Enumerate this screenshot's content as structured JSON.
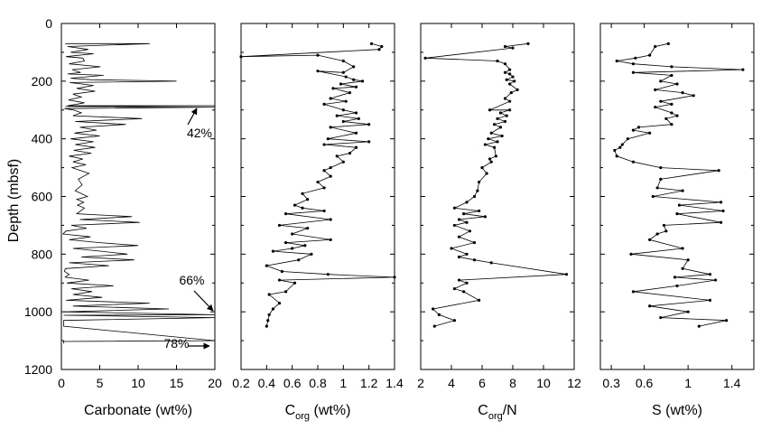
{
  "ylabel": "Depth (mbsf)",
  "yticks": [
    0,
    200,
    400,
    600,
    800,
    1000,
    1200
  ],
  "chart_data": [
    {
      "type": "line",
      "xlabel_main": "Carbonate (wt%)",
      "xlabel_sub": "",
      "xlabel_tail": "",
      "ylabel": "Depth (mbsf)",
      "xlim": [
        0,
        20
      ],
      "ylim": [
        1200,
        0
      ],
      "xticks": [
        0,
        5,
        10,
        15,
        20
      ],
      "markers": false,
      "x": [
        0.5,
        11.5,
        0.8,
        3.5,
        1.2,
        4.2,
        0.6,
        2.8,
        3.0,
        1.0,
        5.1,
        1.4,
        2.5,
        0.8,
        5.5,
        1.2,
        3.8,
        15,
        1.1,
        4.2,
        2.0,
        4.4,
        1.5,
        2.6,
        0.9,
        3.0,
        2.0,
        0.8,
        20,
        0.5,
        20,
        0.4,
        1.6,
        2.6,
        1.5,
        10.5,
        1.8,
        8.4,
        2.4,
        4.6,
        1.7,
        5.0,
        1.2,
        4.2,
        1.8,
        4.4,
        1.6,
        3.9,
        1.0,
        2.8,
        1.5,
        3.2,
        1.4,
        3.6,
        2.2,
        2.7,
        1.8,
        3.4,
        2.0,
        2.9,
        2.1,
        3.0,
        2.0,
        9.2,
        2.4,
        10.2,
        1.3,
        3.3,
        0.6,
        0.2,
        3.8,
        1.0,
        5.0,
        10.0,
        1.5,
        5.2,
        8.6,
        2.6,
        9.5,
        1.0,
        6.2,
        0.5,
        0.4,
        1.0,
        0.5,
        3.6,
        0.7,
        6.8,
        1.3,
        4.0,
        1.5,
        5.3,
        0.6,
        11.5,
        1.5,
        14.0,
        0.4,
        20,
        0.3,
        20,
        0.3,
        0.3,
        20,
        0.3,
        0.3
      ],
      "y": [
        70,
        70,
        80,
        90,
        100,
        105,
        115,
        120,
        130,
        140,
        150,
        160,
        170,
        175,
        180,
        190,
        195,
        200,
        205,
        215,
        225,
        235,
        245,
        255,
        265,
        275,
        280,
        285,
        285,
        288,
        290,
        295,
        300,
        310,
        320,
        330,
        340,
        350,
        360,
        370,
        380,
        390,
        400,
        410,
        420,
        430,
        440,
        450,
        460,
        470,
        480,
        490,
        500,
        520,
        540,
        560,
        580,
        600,
        610,
        620,
        630,
        640,
        660,
        670,
        680,
        690,
        700,
        710,
        720,
        730,
        740,
        750,
        760,
        770,
        780,
        790,
        800,
        810,
        820,
        830,
        840,
        850,
        860,
        870,
        880,
        890,
        900,
        910,
        920,
        930,
        940,
        950,
        960,
        970,
        980,
        990,
        1000,
        1010,
        1012,
        1020,
        1030,
        1050,
        1100,
        1103,
        1110
      ],
      "annotations": [
        {
          "text": "42%",
          "x": 18,
          "y": 395
        },
        {
          "text": "66%",
          "x": 17,
          "y": 905
        },
        {
          "text": "78%",
          "x": 15,
          "y": 1125
        }
      ]
    },
    {
      "type": "line",
      "xlabel_main": "C",
      "xlabel_sub": "org",
      "xlabel_tail": "(wt%)",
      "xlim": [
        0.2,
        1.4
      ],
      "ylim": [
        1200,
        0
      ],
      "xticks": [
        0.2,
        0.4,
        0.6,
        0.8,
        1,
        1.2,
        1.4
      ],
      "markers": true,
      "x": [
        1.22,
        1.3,
        1.28,
        0.2,
        0.8,
        1.0,
        1.08,
        1.0,
        0.8,
        1.02,
        1.08,
        1.15,
        0.98,
        1.1,
        0.92,
        1.05,
        0.9,
        1.02,
        0.85,
        1.0,
        1.1,
        0.95,
        1.12,
        1.0,
        1.2,
        0.9,
        1.1,
        0.88,
        1.2,
        0.85,
        1.1,
        1.05,
        0.95,
        1.0,
        0.9,
        0.85,
        0.9,
        0.8,
        0.85,
        0.68,
        0.72,
        0.62,
        0.68,
        0.85,
        0.55,
        0.9,
        0.5,
        0.72,
        0.6,
        0.9,
        0.55,
        0.7,
        0.6,
        0.45,
        0.75,
        0.65,
        0.4,
        0.52,
        0.88,
        1.4,
        0.5,
        0.62,
        0.55,
        0.42,
        0.5,
        0.45,
        0.42,
        0.41,
        0.4
      ],
      "y": [
        70,
        80,
        90,
        115,
        110,
        130,
        150,
        170,
        165,
        185,
        195,
        200,
        210,
        220,
        225,
        240,
        260,
        270,
        280,
        300,
        310,
        320,
        330,
        340,
        350,
        360,
        380,
        400,
        410,
        420,
        430,
        450,
        460,
        480,
        500,
        510,
        530,
        550,
        570,
        590,
        610,
        630,
        640,
        650,
        660,
        680,
        700,
        710,
        730,
        750,
        760,
        770,
        780,
        790,
        800,
        820,
        840,
        860,
        870,
        880,
        890,
        900,
        930,
        940,
        970,
        990,
        1010,
        1030,
        1050
      ]
    },
    {
      "type": "line",
      "xlabel_main": "C",
      "xlabel_sub": "org",
      "xlabel_tail": "/N",
      "xlim": [
        2,
        12
      ],
      "ylim": [
        1200,
        0
      ],
      "xticks": [
        2,
        4,
        6,
        8,
        10,
        12
      ],
      "markers": true,
      "x": [
        9.0,
        7.5,
        8.0,
        2.3,
        7.0,
        7.5,
        7.8,
        7.5,
        7.8,
        8.0,
        7.6,
        8.1,
        7.8,
        8.3,
        7.9,
        7.5,
        7.8,
        6.5,
        7.8,
        7.2,
        7.6,
        7.0,
        7.5,
        6.8,
        7.2,
        6.6,
        7.3,
        6.4,
        7.0,
        6.2,
        6.8,
        6.9,
        6.5,
        6.6,
        6.0,
        6.3,
        5.8,
        5.7,
        5.5,
        5.0,
        4.2,
        5.8,
        4.8,
        6.2,
        4.5,
        5.0,
        4.2,
        5.2,
        4.5,
        5.5,
        4.0,
        5.0,
        4.5,
        5.5,
        6.6,
        11.5,
        4.5,
        5.0,
        4.2,
        4.8,
        5.8,
        2.8,
        3.2,
        4.2,
        2.9
      ],
      "y": [
        70,
        80,
        85,
        120,
        130,
        140,
        160,
        170,
        175,
        185,
        195,
        200,
        210,
        230,
        240,
        260,
        270,
        300,
        300,
        310,
        320,
        330,
        340,
        350,
        360,
        380,
        390,
        400,
        410,
        420,
        430,
        460,
        470,
        480,
        500,
        520,
        550,
        580,
        600,
        620,
        640,
        650,
        660,
        670,
        680,
        690,
        700,
        720,
        740,
        760,
        780,
        800,
        810,
        820,
        830,
        870,
        890,
        900,
        920,
        930,
        960,
        990,
        1010,
        1030,
        1050
      ]
    },
    {
      "type": "line",
      "xlabel_main": "S",
      "xlabel_sub": "",
      "xlabel_tail": "(wt%)",
      "xlim": [
        0.2,
        1.6
      ],
      "ylim": [
        1200,
        0
      ],
      "xticks": [
        0.3,
        0.6,
        1,
        1.4
      ],
      "markers": true,
      "x": [
        0.82,
        0.7,
        0.65,
        0.52,
        0.35,
        0.5,
        0.85,
        1.5,
        0.5,
        0.85,
        0.75,
        0.9,
        0.7,
        0.95,
        1.05,
        0.75,
        0.85,
        0.7,
        0.85,
        0.9,
        0.8,
        0.85,
        0.55,
        0.5,
        0.65,
        0.45,
        0.4,
        0.38,
        0.33,
        0.35,
        0.5,
        0.75,
        1.28,
        0.75,
        0.72,
        0.95,
        0.68,
        1.3,
        0.92,
        1.32,
        0.9,
        1.3,
        0.78,
        0.8,
        0.72,
        0.65,
        0.95,
        0.48,
        1.0,
        0.95,
        1.2,
        0.88,
        1.25,
        0.9,
        0.5,
        1.2,
        0.65,
        1.0,
        0.75,
        1.35,
        1.1
      ],
      "y": [
        70,
        80,
        110,
        120,
        130,
        140,
        150,
        160,
        170,
        180,
        200,
        210,
        230,
        240,
        250,
        270,
        280,
        290,
        310,
        320,
        330,
        350,
        360,
        370,
        380,
        400,
        420,
        430,
        440,
        460,
        480,
        500,
        510,
        540,
        570,
        580,
        600,
        620,
        630,
        650,
        660,
        690,
        700,
        720,
        730,
        750,
        780,
        800,
        820,
        850,
        870,
        880,
        890,
        910,
        930,
        960,
        980,
        1000,
        1020,
        1030,
        1050
      ]
    }
  ]
}
